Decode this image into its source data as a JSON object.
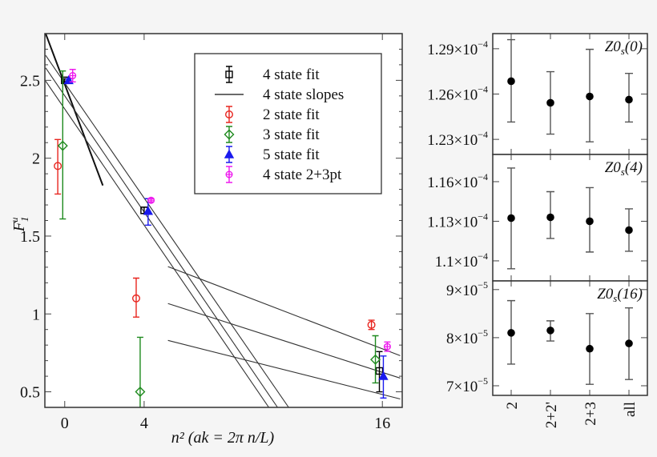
{
  "chart_data": [
    {
      "type": "scatter",
      "xlabel": "n²  (ak = 2π n/L)",
      "ylabel": "F1u",
      "xlim": [
        -1,
        17
      ],
      "ylim": [
        0.4,
        2.8
      ],
      "xticks": [
        0,
        4,
        16
      ],
      "xtick_labels": [
        "0",
        "4",
        "16"
      ],
      "yticks": [
        0.5,
        1,
        1.5,
        2,
        2.5
      ],
      "ytick_labels": [
        "0.5",
        "1",
        "1.5",
        "2",
        "2.5"
      ],
      "legend_position": "top-right",
      "series": [
        {
          "name": "4 state fit",
          "color": "#000000",
          "marker": "square",
          "points": [
            {
              "x": 0,
              "y": 2.5,
              "lo": 2.49,
              "hi": 2.51
            },
            {
              "x": 4,
              "y": 1.665,
              "lo": 1.645,
              "hi": 1.685
            },
            {
              "x": 15.85,
              "y": 0.634,
              "lo": 0.5,
              "hi": 0.758
            }
          ]
        },
        {
          "name": "4 state slopes",
          "color": "#000000",
          "marker": "line",
          "lines": [
            {
              "x1": -0.96,
              "y1": 2.8,
              "x2": 1.92,
              "y2": 1.825,
              "bold": true
            },
            {
              "x1": -0.96,
              "y1": 2.66,
              "x2": 11.28,
              "y2": 0.4
            },
            {
              "x1": -0.96,
              "y1": 2.58,
              "x2": 10.72,
              "y2": 0.4
            },
            {
              "x1": -0.96,
              "y1": 2.495,
              "x2": 10.28,
              "y2": 0.4
            },
            {
              "x1": 5.2,
              "y1": 1.304,
              "x2": 16.9,
              "y2": 0.732
            },
            {
              "x1": 5.2,
              "y1": 1.067,
              "x2": 16.9,
              "y2": 0.588
            },
            {
              "x1": 5.2,
              "y1": 0.83,
              "x2": 16.9,
              "y2": 0.454
            }
          ]
        },
        {
          "name": "2 state fit",
          "color": "#e8251f",
          "marker": "circle",
          "points": [
            {
              "x": -0.35,
              "y": 1.95,
              "lo": 1.77,
              "hi": 2.12
            },
            {
              "x": 3.6,
              "y": 1.1,
              "lo": 0.98,
              "hi": 1.23
            },
            {
              "x": 15.45,
              "y": 0.93,
              "lo": 0.9,
              "hi": 0.96
            }
          ]
        },
        {
          "name": "3 state fit",
          "color": "#1e8a1e",
          "marker": "diamond",
          "points": [
            {
              "x": -0.1,
              "y": 2.08,
              "lo": 1.61,
              "hi": 2.56
            },
            {
              "x": 3.8,
              "y": 0.5,
              "lo": 0.15,
              "hi": 0.85
            },
            {
              "x": 15.65,
              "y": 0.707,
              "lo": 0.557,
              "hi": 0.86
            }
          ]
        },
        {
          "name": "5 state fit",
          "color": "#1a1aee",
          "marker": "triangle",
          "points": [
            {
              "x": 0.2,
              "y": 2.5,
              "lo": 2.49,
              "hi": 2.51
            },
            {
              "x": 4.2,
              "y": 1.66,
              "lo": 1.57,
              "hi": 1.74
            },
            {
              "x": 16.05,
              "y": 0.6,
              "lo": 0.46,
              "hi": 0.73
            }
          ]
        },
        {
          "name": "4 state 2+3pt",
          "color": "#ee1aee",
          "marker": "star",
          "points": [
            {
              "x": 0.4,
              "y": 2.53,
              "lo": 2.49,
              "hi": 2.57
            },
            {
              "x": 4.35,
              "y": 1.73,
              "lo": 1.72,
              "hi": 1.74
            },
            {
              "x": 16.25,
              "y": 0.79,
              "lo": 0.76,
              "hi": 0.82
            }
          ]
        }
      ]
    },
    {
      "type": "scatter",
      "categories": [
        "2",
        "2+2'",
        "2+3",
        "all"
      ],
      "panels": [
        {
          "label": "Z0s(0)",
          "label_main": "Z0",
          "label_sub": "s",
          "label_arg": "(0)",
          "ylim": [
            0.000122,
            0.00013
          ],
          "yticks": [
            0.000123,
            0.000126,
            0.000129
          ],
          "ytick_labels": [
            {
              "mant": "1.23×10",
              "exp": "−4"
            },
            {
              "mant": "1.26×10",
              "exp": "−4"
            },
            {
              "mant": "1.29×10",
              "exp": "−4"
            }
          ],
          "values": [
            0.00012685,
            0.00012542,
            0.00012584,
            0.00012563
          ],
          "lo": [
            0.00012415,
            0.00012335,
            0.00012284,
            0.00012415
          ],
          "hi": [
            0.0001296,
            0.00012748,
            0.00012896,
            0.00012737
          ]
        },
        {
          "label": "Z0s(4)",
          "label_main": "Z0",
          "label_sub": "s",
          "label_arg": "(4)",
          "ylim": [
            0.00010848,
            0.00011806
          ],
          "yticks": [
            0.00011,
            0.000113,
            0.000116
          ],
          "ytick_labels": [
            {
              "mant": "1.1×10",
              "exp": "−4"
            },
            {
              "mant": "1.13×10",
              "exp": "−4"
            },
            {
              "mant": "1.16×10",
              "exp": "−4"
            }
          ],
          "values": [
            0.00011324,
            0.0001133,
            0.000113,
            0.00011233
          ],
          "lo": [
            0.0001094,
            0.0001117,
            0.00011067,
            0.00011073
          ],
          "hi": [
            0.00011703,
            0.00011524,
            0.00011555,
            0.00011394
          ]
        },
        {
          "label": "Z0s(16)",
          "label_main": "Z0",
          "label_sub": "s",
          "label_arg": "(16)",
          "ylim": [
            6.8e-05,
            9.18e-05
          ],
          "yticks": [
            7e-05,
            8e-05,
            9e-05
          ],
          "ytick_labels": [
            {
              "mant": "7×10",
              "exp": "−5"
            },
            {
              "mant": "8×10",
              "exp": "−5"
            },
            {
              "mant": "9×10",
              "exp": "−5"
            }
          ],
          "values": [
            8.1e-05,
            8.15e-05,
            7.77e-05,
            7.88e-05
          ],
          "lo": [
            7.45e-05,
            7.93e-05,
            7.03e-05,
            7.13e-05
          ],
          "hi": [
            8.77e-05,
            8.35e-05,
            8.5e-05,
            8.62e-05
          ]
        }
      ]
    }
  ]
}
